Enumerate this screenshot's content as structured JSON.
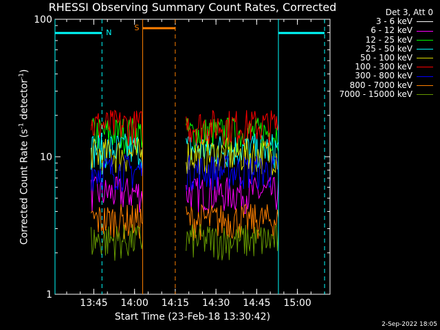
{
  "chart_data": {
    "type": "line",
    "title": "RHESSI Observing Summary Count Rates, Corrected",
    "xlabel": "Start Time (23-Feb-18 13:30:42)",
    "ylabel_text": "Corrected Count Rate (s",
    "ylabel_sup1": "-1",
    "ylabel_mid": " detector",
    "ylabel_sup2": "-1",
    "ylabel_end": ")",
    "y_scale": "log",
    "ylim": [
      1,
      100
    ],
    "xlim": [
      "13:30:42",
      "15:12"
    ],
    "x_ticks": [
      "13:45",
      "14:00",
      "14:15",
      "14:30",
      "14:45",
      "15:00"
    ],
    "y_ticks": [
      "1",
      "10",
      "100"
    ],
    "legend_header": "Det 3, Att 0",
    "legend_position": "top-right",
    "series": [
      {
        "name": "3 - 6 keV",
        "color": "#000000",
        "level": 12.5
      },
      {
        "name": "6 - 12 keV",
        "color": "#ff00ff",
        "level": 5.5
      },
      {
        "name": "12 - 25 keV",
        "color": "#00ff00",
        "level": 15.0
      },
      {
        "name": "25 - 50 keV",
        "color": "#00ffff",
        "level": 11.5
      },
      {
        "name": "50 - 100 keV",
        "color": "#dddd00",
        "level": 10.5
      },
      {
        "name": "100 - 300 keV",
        "color": "#ff0000",
        "level": 17.0
      },
      {
        "name": "300 - 800 keV",
        "color": "#0000ff",
        "level": 8.0
      },
      {
        "name": "800 - 7000 keV",
        "color": "#ff8000",
        "level": 3.5
      },
      {
        "name": "7000 - 15000 keV",
        "color": "#669900",
        "level": 2.5
      }
    ],
    "segments": [
      {
        "start": "13:44",
        "end": "14:03"
      },
      {
        "start": "14:19",
        "end": "14:53"
      }
    ],
    "annotations": [
      {
        "text": "N",
        "color": "#00ffff"
      },
      {
        "text": "S",
        "color": "#ff8000"
      }
    ]
  },
  "timestamp": "2-Sep-2022 18:05"
}
